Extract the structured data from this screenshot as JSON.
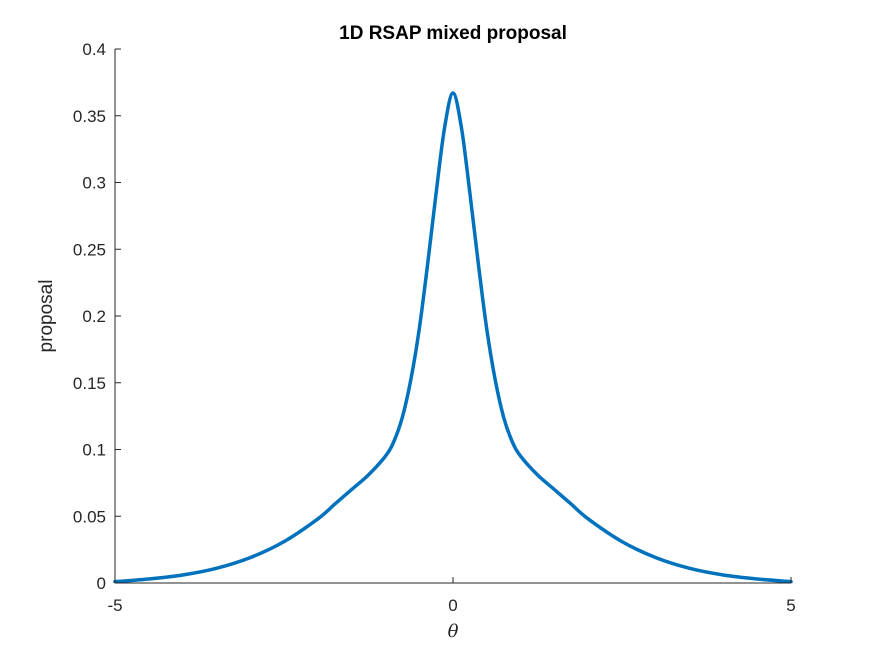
{
  "chart_data": {
    "type": "line",
    "title": "1D RSAP mixed proposal",
    "xlabel": "θ",
    "ylabel": "proposal",
    "xlim": [
      -5,
      5
    ],
    "ylim": [
      0,
      0.4
    ],
    "x_ticks": [
      "-5",
      "0",
      "5"
    ],
    "y_ticks": [
      "0",
      "0.05",
      "0.1",
      "0.15",
      "0.2",
      "0.25",
      "0.3",
      "0.35",
      "0.4"
    ],
    "x_tick_values": [
      -5,
      0,
      5
    ],
    "y_tick_values": [
      0,
      0.05,
      0.1,
      0.15,
      0.2,
      0.25,
      0.3,
      0.35,
      0.4
    ],
    "grid": false,
    "series": [
      {
        "color": "#0072BD",
        "x": [
          -5,
          -4.5,
          -4,
          -3.5,
          -3,
          -2.5,
          -2,
          -1.75,
          -1.5,
          -1.25,
          -1,
          -0.875,
          -0.75,
          -0.625,
          -0.5,
          -0.375,
          -0.25,
          -0.125,
          0,
          0.125,
          0.25,
          0.375,
          0.5,
          0.625,
          0.75,
          0.875,
          1,
          1.25,
          1.5,
          1.75,
          2,
          2.5,
          3,
          3.5,
          4,
          4.5,
          5
        ],
        "y": [
          0.001,
          0.003,
          0.006,
          0.011,
          0.019,
          0.031,
          0.048,
          0.059,
          0.07,
          0.081,
          0.095,
          0.106,
          0.124,
          0.152,
          0.19,
          0.239,
          0.292,
          0.341,
          0.367,
          0.341,
          0.292,
          0.239,
          0.19,
          0.152,
          0.124,
          0.106,
          0.095,
          0.081,
          0.07,
          0.059,
          0.048,
          0.031,
          0.019,
          0.011,
          0.006,
          0.003,
          0.001
        ]
      }
    ]
  }
}
